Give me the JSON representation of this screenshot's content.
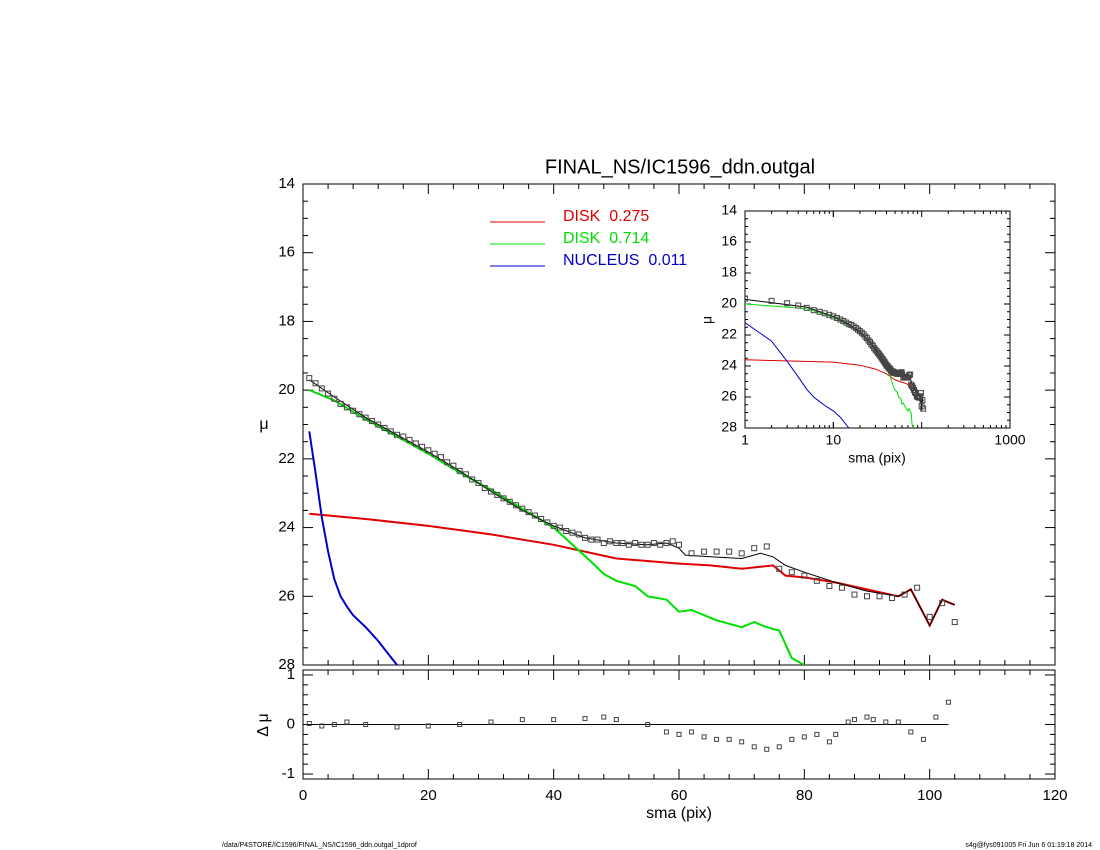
{
  "chart_data": [
    {
      "type": "line",
      "title": "FINAL_NS/IC1596_ddn.outgal",
      "y_label": "μ",
      "xlim": [
        0,
        120
      ],
      "xticks": [
        0,
        20,
        40,
        60,
        80,
        100,
        120
      ],
      "ylim": [
        28,
        14
      ],
      "yticks": [
        14,
        16,
        18,
        20,
        22,
        24,
        26,
        28
      ],
      "series": [
        {
          "name": "DISK  0.275",
          "type": "line",
          "color": "#e00000",
          "line_width": 2,
          "x": [
            1,
            10,
            20,
            30,
            40,
            50,
            60,
            65,
            70,
            75,
            77,
            80,
            85,
            90,
            95,
            97,
            100,
            102,
            104
          ],
          "values": [
            23.6,
            23.75,
            23.95,
            24.2,
            24.5,
            24.9,
            25.05,
            25.1,
            25.2,
            25.1,
            25.4,
            25.45,
            25.6,
            25.8,
            26.0,
            25.8,
            26.85,
            26.1,
            26.25
          ]
        },
        {
          "name": "DISK  0.714",
          "type": "line",
          "color": "#00e000",
          "line_width": 2,
          "x": [
            1,
            5,
            10,
            15,
            20,
            25,
            30,
            35,
            40,
            43,
            46,
            48,
            50,
            53,
            55,
            58,
            60,
            62,
            64,
            66,
            70,
            72,
            74,
            76,
            78,
            80
          ],
          "values": [
            20.0,
            20.3,
            20.85,
            21.35,
            21.85,
            22.4,
            22.9,
            23.45,
            24.0,
            24.5,
            25.0,
            25.35,
            25.55,
            25.7,
            26.0,
            26.1,
            26.45,
            26.4,
            26.55,
            26.7,
            26.9,
            26.75,
            26.9,
            27.0,
            27.8,
            28.0
          ]
        },
        {
          "name": "NUCLEUS  0.011",
          "type": "line",
          "color": "#0000c8",
          "line_width": 2,
          "x": [
            1,
            2,
            3,
            4,
            5,
            6,
            7,
            8,
            10,
            12,
            15
          ],
          "values": [
            21.2,
            22.4,
            23.7,
            24.7,
            25.5,
            26.0,
            26.3,
            26.55,
            26.9,
            27.3,
            28.0
          ]
        },
        {
          "type": "line",
          "color": "#000000",
          "line_width": 1,
          "x": [
            1,
            5,
            10,
            15,
            20,
            25,
            30,
            35,
            40,
            45,
            50,
            55,
            58,
            60,
            61,
            65,
            70,
            73,
            75,
            77,
            80,
            85,
            90,
            95,
            97,
            100,
            102,
            104
          ],
          "values": [
            19.7,
            20.2,
            20.8,
            21.3,
            21.8,
            22.35,
            22.95,
            23.5,
            23.95,
            24.3,
            24.45,
            24.5,
            24.45,
            24.6,
            24.8,
            24.85,
            24.9,
            24.75,
            24.85,
            25.1,
            25.3,
            25.6,
            25.85,
            26.0,
            25.8,
            26.85,
            26.1,
            26.25
          ]
        },
        {
          "type": "scatter",
          "color": "#444444",
          "x": [
            1,
            2,
            3,
            4,
            5,
            6,
            7,
            8,
            9,
            10,
            11,
            12,
            13,
            14,
            15,
            16,
            17,
            18,
            19,
            20,
            21,
            22,
            23,
            24,
            25,
            26,
            27,
            28,
            29,
            30,
            31,
            32,
            33,
            34,
            35,
            36,
            37,
            38,
            39,
            40,
            41,
            42,
            43,
            44,
            45,
            46,
            47,
            48,
            49,
            50,
            51,
            52,
            53,
            54,
            55,
            56,
            57,
            58,
            59,
            60,
            62,
            64,
            66,
            68,
            70,
            72,
            74,
            76,
            78,
            80,
            82,
            84,
            86,
            88,
            90,
            92,
            94,
            96,
            98,
            100,
            102,
            104
          ],
          "values": [
            19.65,
            19.8,
            19.95,
            20.1,
            20.25,
            20.4,
            20.5,
            20.6,
            20.7,
            20.8,
            20.9,
            21.0,
            21.1,
            21.2,
            21.3,
            21.35,
            21.45,
            21.55,
            21.65,
            21.75,
            21.85,
            21.95,
            22.1,
            22.2,
            22.35,
            22.45,
            22.6,
            22.7,
            22.85,
            22.95,
            23.05,
            23.15,
            23.25,
            23.35,
            23.45,
            23.55,
            23.65,
            23.75,
            23.85,
            23.95,
            24.0,
            24.1,
            24.15,
            24.2,
            24.3,
            24.35,
            24.35,
            24.45,
            24.4,
            24.45,
            24.45,
            24.5,
            24.45,
            24.5,
            24.5,
            24.45,
            24.5,
            24.45,
            24.4,
            24.5,
            24.75,
            24.7,
            24.7,
            24.7,
            24.75,
            24.6,
            24.55,
            25.2,
            25.3,
            25.4,
            25.55,
            25.7,
            25.75,
            25.95,
            26.0,
            26.0,
            26.05,
            25.95,
            25.75,
            26.6,
            26.2,
            26.75
          ]
        }
      ]
    },
    {
      "type": "scatter",
      "x_label": "sma (pix)",
      "y_label": "Δ μ",
      "xlim": [
        0,
        120
      ],
      "xticks": [
        0,
        20,
        40,
        60,
        80,
        100,
        120
      ],
      "ylim": [
        -1.1,
        1.1
      ],
      "yticks": [
        -1,
        0,
        1
      ],
      "series": [
        {
          "type": "scatter",
          "color": "#444444",
          "x": [
            1,
            3,
            5,
            7,
            10,
            15,
            20,
            25,
            30,
            35,
            40,
            45,
            48,
            50,
            55,
            58,
            60,
            62,
            64,
            66,
            68,
            70,
            72,
            74,
            76,
            78,
            80,
            82,
            84,
            85,
            87,
            88,
            90,
            91,
            93,
            95,
            97,
            99,
            101,
            103
          ],
          "values": [
            0.02,
            -0.03,
            0,
            0.05,
            0,
            -0.05,
            -0.03,
            0,
            0.05,
            0.1,
            0.1,
            0.12,
            0.15,
            0.1,
            0,
            -0.15,
            -0.2,
            -0.15,
            -0.25,
            -0.3,
            -0.3,
            -0.35,
            -0.45,
            -0.5,
            -0.45,
            -0.3,
            -0.25,
            -0.2,
            -0.35,
            -0.2,
            0.05,
            0.1,
            0.15,
            0.1,
            0.05,
            0.05,
            -0.15,
            -0.3,
            0.15,
            0.45
          ]
        }
      ]
    },
    {
      "type": "line",
      "log_x": true,
      "x_label": "sma (pix)",
      "y_label": "μ",
      "xlim": [
        1,
        1000
      ],
      "xticks": [
        1,
        10,
        1000
      ],
      "ylim": [
        28,
        14
      ],
      "yticks": [
        14,
        16,
        18,
        20,
        22,
        24,
        26,
        28
      ]
    }
  ],
  "footer": {
    "left": "/data/P4STORE/IC1596/FINAL_NS/IC1596_ddn.outgal_1dprof",
    "right": "s4g@fys091005  Fri Jun  6 01:19:18 2014"
  }
}
